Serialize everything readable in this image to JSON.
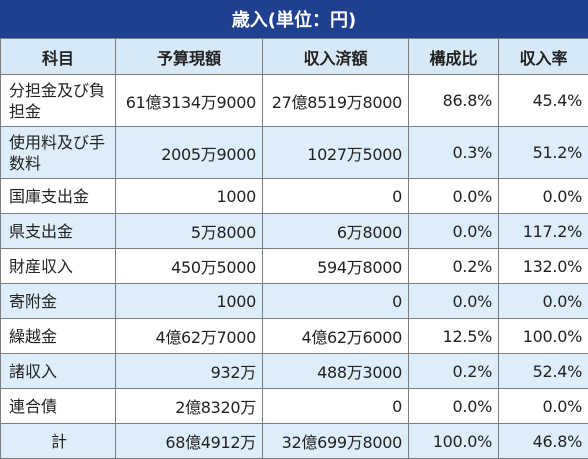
{
  "title": "歳入(単位：円)",
  "headers": [
    "科目",
    "予算現額",
    "収入済額",
    "構成比",
    "収入率"
  ],
  "rows": [
    {
      "name": "分担金及び負担金",
      "budget": "61億3134万9000",
      "revenue": "27億8519万8000",
      "ratio": "86.8%",
      "rate": "45.4%"
    },
    {
      "name": "使用料及び手数料",
      "budget": "2005万9000",
      "revenue": "1027万5000",
      "ratio": "0.3%",
      "rate": "51.2%"
    },
    {
      "name": "国庫支出金",
      "budget": "1000",
      "revenue": "0",
      "ratio": "0.0%",
      "rate": "0.0%"
    },
    {
      "name": "県支出金",
      "budget": "5万8000",
      "revenue": "6万8000",
      "ratio": "0.0%",
      "rate": "117.2%"
    },
    {
      "name": "財産収入",
      "budget": "450万5000",
      "revenue": "594万8000",
      "ratio": "0.2%",
      "rate": "132.0%"
    },
    {
      "name": "寄附金",
      "budget": "1000",
      "revenue": "0",
      "ratio": "0.0%",
      "rate": "0.0%"
    },
    {
      "name": "繰越金",
      "budget": "4億62万7000",
      "revenue": "4億62万6000",
      "ratio": "12.5%",
      "rate": "100.0%"
    },
    {
      "name": "諸収入",
      "budget": "932万",
      "revenue": "488万3000",
      "ratio": "0.2%",
      "rate": "52.4%"
    },
    {
      "name": "連合債",
      "budget": "2億8320万",
      "revenue": "0",
      "ratio": "0.0%",
      "rate": "0.0%"
    },
    {
      "name": "計",
      "budget": "68億4912万",
      "revenue": "32億699万8000",
      "ratio": "100.0%",
      "rate": "46.8%"
    }
  ]
}
